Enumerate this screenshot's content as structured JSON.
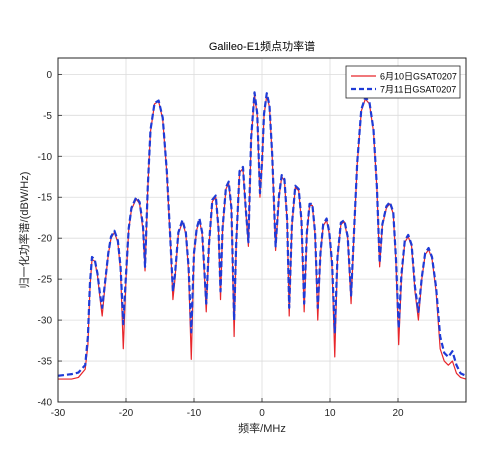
{
  "chart_data": {
    "type": "line",
    "title": "Galileo-E1频点功率谱",
    "xlabel": "频率/MHz",
    "ylabel": "归一化功率谱/(dBW/Hz)",
    "xlim": [
      -30,
      30
    ],
    "ylim": [
      -40,
      2
    ],
    "xticks": [
      -30,
      -20,
      -10,
      0,
      10,
      20
    ],
    "yticks": [
      0,
      -5,
      -10,
      -15,
      -20,
      -25,
      -30,
      -35,
      -40
    ],
    "grid": true,
    "legend_position": "top-right",
    "series": [
      {
        "name": "6月10日GSAT0207",
        "color": "#e8262b",
        "style": "solid",
        "points": [
          [
            -30,
            -37.2
          ],
          [
            -28,
            -37.2
          ],
          [
            -27,
            -37.0
          ],
          [
            -26,
            -36.0
          ],
          [
            -25.6,
            -33.0
          ],
          [
            -25.3,
            -26.0
          ],
          [
            -25.0,
            -22.6
          ],
          [
            -24.6,
            -22.8
          ],
          [
            -24.2,
            -24.5
          ],
          [
            -23.8,
            -27.5
          ],
          [
            -23.5,
            -29.5
          ],
          [
            -23.0,
            -25.0
          ],
          [
            -22.6,
            -22.0
          ],
          [
            -22.2,
            -20.0
          ],
          [
            -21.7,
            -19.3
          ],
          [
            -21.2,
            -20.5
          ],
          [
            -20.8,
            -24.0
          ],
          [
            -20.4,
            -33.5
          ],
          [
            -20.0,
            -25.0
          ],
          [
            -19.6,
            -19.0
          ],
          [
            -19.2,
            -16.5
          ],
          [
            -18.5,
            -15.2
          ],
          [
            -18.0,
            -15.8
          ],
          [
            -17.5,
            -19.0
          ],
          [
            -17.2,
            -24.0
          ],
          [
            -16.8,
            -14.0
          ],
          [
            -16.4,
            -7.0
          ],
          [
            -15.8,
            -3.6
          ],
          [
            -15.2,
            -3.3
          ],
          [
            -14.6,
            -5.5
          ],
          [
            -14.0,
            -12.0
          ],
          [
            -13.5,
            -20.0
          ],
          [
            -13.1,
            -27.5
          ],
          [
            -12.8,
            -25.0
          ],
          [
            -12.3,
            -19.5
          ],
          [
            -11.7,
            -18.0
          ],
          [
            -11.2,
            -19.5
          ],
          [
            -10.8,
            -24.0
          ],
          [
            -10.4,
            -34.8
          ],
          [
            -10.0,
            -22.0
          ],
          [
            -9.6,
            -19.0
          ],
          [
            -9.2,
            -17.8
          ],
          [
            -8.8,
            -19.5
          ],
          [
            -8.5,
            -24.0
          ],
          [
            -8.2,
            -29.0
          ],
          [
            -7.8,
            -21.0
          ],
          [
            -7.3,
            -15.5
          ],
          [
            -6.8,
            -15.0
          ],
          [
            -6.4,
            -19.0
          ],
          [
            -6.1,
            -27.5
          ],
          [
            -5.8,
            -19.0
          ],
          [
            -5.3,
            -14.0
          ],
          [
            -4.9,
            -13.3
          ],
          [
            -4.5,
            -16.5
          ],
          [
            -4.1,
            -32.0
          ],
          [
            -3.8,
            -21.0
          ],
          [
            -3.3,
            -12.0
          ],
          [
            -2.8,
            -11.5
          ],
          [
            -2.4,
            -16.5
          ],
          [
            -2.0,
            -21.0
          ],
          [
            -1.6,
            -8.0
          ],
          [
            -1.1,
            -2.5
          ],
          [
            -0.7,
            -5.0
          ],
          [
            -0.3,
            -15.0
          ],
          [
            0.0,
            -11.0
          ],
          [
            0.3,
            -5.0
          ],
          [
            0.7,
            -2.6
          ],
          [
            1.1,
            -4.0
          ],
          [
            1.5,
            -10.0
          ],
          [
            2.0,
            -21.5
          ],
          [
            2.5,
            -15.0
          ],
          [
            2.9,
            -12.5
          ],
          [
            3.3,
            -13.0
          ],
          [
            3.7,
            -18.0
          ],
          [
            4.0,
            -29.5
          ],
          [
            4.4,
            -18.5
          ],
          [
            4.9,
            -13.8
          ],
          [
            5.4,
            -14.2
          ],
          [
            5.8,
            -18.0
          ],
          [
            6.2,
            -29.0
          ],
          [
            6.6,
            -19.5
          ],
          [
            7.0,
            -16.0
          ],
          [
            7.4,
            -16.0
          ],
          [
            7.8,
            -19.5
          ],
          [
            8.2,
            -30.0
          ],
          [
            8.6,
            -22.0
          ],
          [
            9.0,
            -18.5
          ],
          [
            9.5,
            -17.8
          ],
          [
            9.9,
            -19.5
          ],
          [
            10.3,
            -23.5
          ],
          [
            10.7,
            -34.5
          ],
          [
            11.1,
            -22.5
          ],
          [
            11.6,
            -18.3
          ],
          [
            12.1,
            -18.0
          ],
          [
            12.6,
            -20.0
          ],
          [
            13.1,
            -28.0
          ],
          [
            13.5,
            -20.0
          ],
          [
            14.0,
            -11.0
          ],
          [
            14.6,
            -4.5
          ],
          [
            15.2,
            -3.0
          ],
          [
            15.8,
            -3.6
          ],
          [
            16.4,
            -7.0
          ],
          [
            16.9,
            -14.0
          ],
          [
            17.3,
            -23.5
          ],
          [
            17.7,
            -18.5
          ],
          [
            18.3,
            -16.3
          ],
          [
            18.8,
            -15.8
          ],
          [
            19.3,
            -17.0
          ],
          [
            19.7,
            -23.0
          ],
          [
            20.1,
            -33.0
          ],
          [
            20.5,
            -25.0
          ],
          [
            21.0,
            -20.5
          ],
          [
            21.5,
            -19.8
          ],
          [
            22.0,
            -21.0
          ],
          [
            22.5,
            -26.5
          ],
          [
            23.0,
            -30.0
          ],
          [
            23.5,
            -25.0
          ],
          [
            24.0,
            -22.0
          ],
          [
            24.5,
            -21.4
          ],
          [
            25.0,
            -22.5
          ],
          [
            25.6,
            -26.5
          ],
          [
            26.2,
            -33.5
          ],
          [
            26.8,
            -35.0
          ],
          [
            27.4,
            -35.5
          ],
          [
            28.0,
            -35.0
          ],
          [
            28.6,
            -36.5
          ],
          [
            29.2,
            -37.0
          ],
          [
            30,
            -37.2
          ]
        ]
      },
      {
        "name": "7月11日GSAT0207",
        "color": "#1f3bd6",
        "style": "dashed",
        "points": [
          [
            -30,
            -36.8
          ],
          [
            -28,
            -36.6
          ],
          [
            -27,
            -36.4
          ],
          [
            -26,
            -35.5
          ],
          [
            -25.6,
            -32.0
          ],
          [
            -25.3,
            -25.5
          ],
          [
            -25.0,
            -22.3
          ],
          [
            -24.6,
            -22.6
          ],
          [
            -24.2,
            -24.3
          ],
          [
            -23.8,
            -27.0
          ],
          [
            -23.5,
            -28.5
          ],
          [
            -23.0,
            -24.8
          ],
          [
            -22.6,
            -21.8
          ],
          [
            -22.2,
            -19.8
          ],
          [
            -21.7,
            -19.1
          ],
          [
            -21.2,
            -20.3
          ],
          [
            -20.8,
            -23.5
          ],
          [
            -20.4,
            -30.5
          ],
          [
            -20.0,
            -24.5
          ],
          [
            -19.6,
            -18.8
          ],
          [
            -19.2,
            -16.3
          ],
          [
            -18.5,
            -15.0
          ],
          [
            -18.0,
            -15.6
          ],
          [
            -17.5,
            -18.5
          ],
          [
            -17.2,
            -23.5
          ],
          [
            -16.8,
            -13.8
          ],
          [
            -16.4,
            -6.8
          ],
          [
            -15.8,
            -3.5
          ],
          [
            -15.2,
            -3.2
          ],
          [
            -14.6,
            -5.3
          ],
          [
            -14.0,
            -11.8
          ],
          [
            -13.5,
            -19.8
          ],
          [
            -13.1,
            -26.5
          ],
          [
            -12.8,
            -24.5
          ],
          [
            -12.3,
            -19.3
          ],
          [
            -11.7,
            -17.8
          ],
          [
            -11.2,
            -19.3
          ],
          [
            -10.8,
            -23.5
          ],
          [
            -10.4,
            -31.5
          ],
          [
            -10.0,
            -21.8
          ],
          [
            -9.6,
            -18.8
          ],
          [
            -9.2,
            -17.6
          ],
          [
            -8.8,
            -19.3
          ],
          [
            -8.5,
            -23.5
          ],
          [
            -8.2,
            -28.0
          ],
          [
            -7.8,
            -20.8
          ],
          [
            -7.3,
            -15.3
          ],
          [
            -6.8,
            -14.8
          ],
          [
            -6.4,
            -18.8
          ],
          [
            -6.1,
            -26.5
          ],
          [
            -5.8,
            -18.8
          ],
          [
            -5.3,
            -13.8
          ],
          [
            -4.9,
            -13.1
          ],
          [
            -4.5,
            -16.3
          ],
          [
            -4.1,
            -30.0
          ],
          [
            -3.8,
            -20.8
          ],
          [
            -3.3,
            -11.8
          ],
          [
            -2.8,
            -11.3
          ],
          [
            -2.4,
            -16.3
          ],
          [
            -2.0,
            -20.5
          ],
          [
            -1.6,
            -7.8
          ],
          [
            -1.1,
            -2.2
          ],
          [
            -0.7,
            -4.8
          ],
          [
            -0.3,
            -14.5
          ],
          [
            0.0,
            -10.8
          ],
          [
            0.3,
            -4.8
          ],
          [
            0.7,
            -2.3
          ],
          [
            1.1,
            -3.8
          ],
          [
            1.5,
            -9.8
          ],
          [
            2.0,
            -21.0
          ],
          [
            2.5,
            -14.8
          ],
          [
            2.9,
            -12.3
          ],
          [
            3.3,
            -12.8
          ],
          [
            3.7,
            -17.8
          ],
          [
            4.0,
            -28.5
          ],
          [
            4.4,
            -18.3
          ],
          [
            4.9,
            -13.6
          ],
          [
            5.4,
            -14.0
          ],
          [
            5.8,
            -17.8
          ],
          [
            6.2,
            -28.0
          ],
          [
            6.6,
            -19.3
          ],
          [
            7.0,
            -15.8
          ],
          [
            7.4,
            -15.8
          ],
          [
            7.8,
            -19.3
          ],
          [
            8.2,
            -28.5
          ],
          [
            8.6,
            -21.8
          ],
          [
            9.0,
            -18.3
          ],
          [
            9.5,
            -17.6
          ],
          [
            9.9,
            -19.3
          ],
          [
            10.3,
            -23.0
          ],
          [
            10.7,
            -31.5
          ],
          [
            11.1,
            -22.3
          ],
          [
            11.6,
            -18.1
          ],
          [
            12.1,
            -17.8
          ],
          [
            12.6,
            -19.8
          ],
          [
            13.1,
            -27.0
          ],
          [
            13.5,
            -19.8
          ],
          [
            14.0,
            -10.8
          ],
          [
            14.6,
            -4.3
          ],
          [
            15.2,
            -2.8
          ],
          [
            15.8,
            -3.4
          ],
          [
            16.4,
            -6.8
          ],
          [
            16.9,
            -13.8
          ],
          [
            17.3,
            -23.0
          ],
          [
            17.7,
            -18.3
          ],
          [
            18.3,
            -16.1
          ],
          [
            18.8,
            -15.6
          ],
          [
            19.3,
            -16.8
          ],
          [
            19.7,
            -22.5
          ],
          [
            20.1,
            -31.0
          ],
          [
            20.5,
            -24.5
          ],
          [
            21.0,
            -20.3
          ],
          [
            21.5,
            -19.6
          ],
          [
            22.0,
            -20.8
          ],
          [
            22.5,
            -26.0
          ],
          [
            23.0,
            -29.0
          ],
          [
            23.5,
            -24.8
          ],
          [
            24.0,
            -21.8
          ],
          [
            24.5,
            -21.2
          ],
          [
            25.0,
            -22.3
          ],
          [
            25.6,
            -26.0
          ],
          [
            26.2,
            -32.0
          ],
          [
            26.8,
            -34.0
          ],
          [
            27.4,
            -34.5
          ],
          [
            28.0,
            -33.8
          ],
          [
            28.6,
            -35.5
          ],
          [
            29.2,
            -36.5
          ],
          [
            30,
            -36.8
          ]
        ]
      }
    ]
  }
}
